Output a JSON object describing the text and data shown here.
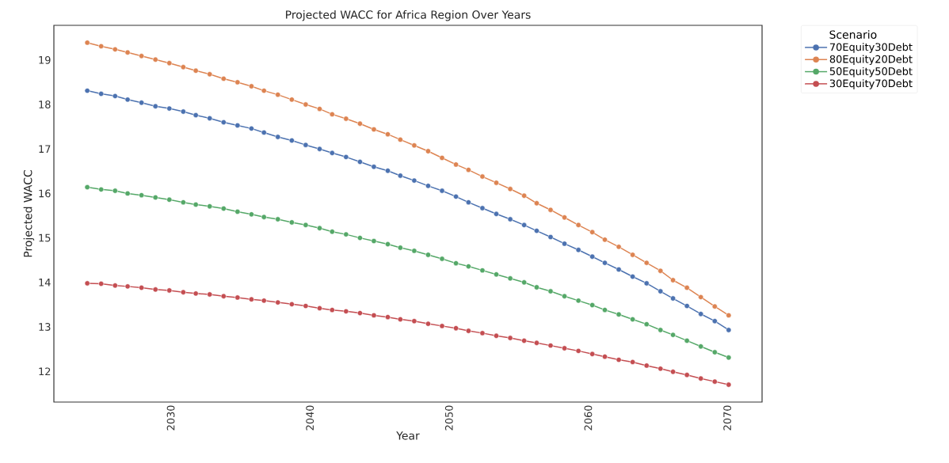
{
  "chart_data": {
    "type": "line",
    "title": "Projected WACC for Africa Region Over Years",
    "xlabel": "Year",
    "ylabel": "Projected WACC",
    "legend_title": "Scenario",
    "x": [
      2024.0,
      2025.0,
      2026.0,
      2026.9,
      2027.9,
      2028.9,
      2029.9,
      2030.9,
      2031.8,
      2032.8,
      2033.8,
      2034.8,
      2035.8,
      2036.7,
      2037.7,
      2038.7,
      2039.7,
      2040.7,
      2041.6,
      2042.6,
      2043.6,
      2044.6,
      2045.6,
      2046.5,
      2047.5,
      2048.5,
      2049.5,
      2050.5,
      2051.4,
      2052.4,
      2053.4,
      2054.4,
      2055.4,
      2056.3,
      2057.3,
      2058.3,
      2059.3,
      2060.3,
      2061.2,
      2062.2,
      2063.2,
      2064.2,
      2065.2,
      2066.1,
      2067.1,
      2068.1,
      2069.1,
      2070.1
    ],
    "series": [
      {
        "name": "70Equity30Debt",
        "color": "#4c72b0",
        "values": [
          18.31,
          18.24,
          18.19,
          18.11,
          18.04,
          17.96,
          17.91,
          17.84,
          17.76,
          17.69,
          17.6,
          17.53,
          17.46,
          17.37,
          17.27,
          17.19,
          17.09,
          17.0,
          16.91,
          16.82,
          16.71,
          16.6,
          16.51,
          16.4,
          16.29,
          16.17,
          16.06,
          15.93,
          15.8,
          15.67,
          15.54,
          15.42,
          15.29,
          15.16,
          15.02,
          14.87,
          14.73,
          14.58,
          14.44,
          14.29,
          14.13,
          13.98,
          13.8,
          13.64,
          13.47,
          13.29,
          13.13,
          12.93
        ]
      },
      {
        "name": "80Equity20Debt",
        "color": "#dd8452",
        "values": [
          19.39,
          19.31,
          19.24,
          19.17,
          19.09,
          19.01,
          18.93,
          18.84,
          18.76,
          18.68,
          18.58,
          18.5,
          18.41,
          18.31,
          18.22,
          18.11,
          18.0,
          17.9,
          17.78,
          17.68,
          17.57,
          17.44,
          17.33,
          17.21,
          17.08,
          16.95,
          16.8,
          16.65,
          16.53,
          16.38,
          16.24,
          16.1,
          15.95,
          15.78,
          15.63,
          15.46,
          15.29,
          15.13,
          14.96,
          14.8,
          14.62,
          14.44,
          14.26,
          14.05,
          13.88,
          13.67,
          13.46,
          13.26
        ]
      },
      {
        "name": "50Equity50Debt",
        "color": "#55a868",
        "values": [
          16.14,
          16.09,
          16.06,
          16.0,
          15.96,
          15.91,
          15.86,
          15.8,
          15.75,
          15.71,
          15.66,
          15.59,
          15.53,
          15.47,
          15.42,
          15.35,
          15.29,
          15.22,
          15.14,
          15.08,
          15.0,
          14.93,
          14.86,
          14.78,
          14.71,
          14.62,
          14.53,
          14.43,
          14.36,
          14.27,
          14.18,
          14.09,
          14.0,
          13.89,
          13.8,
          13.69,
          13.59,
          13.49,
          13.38,
          13.28,
          13.17,
          13.06,
          12.93,
          12.82,
          12.69,
          12.56,
          12.43,
          12.31
        ]
      },
      {
        "name": "30Equity70Debt",
        "color": "#c44e52",
        "values": [
          13.98,
          13.97,
          13.93,
          13.91,
          13.88,
          13.84,
          13.82,
          13.78,
          13.75,
          13.73,
          13.69,
          13.66,
          13.62,
          13.59,
          13.55,
          13.51,
          13.47,
          13.42,
          13.38,
          13.35,
          13.31,
          13.26,
          13.22,
          13.17,
          13.13,
          13.07,
          13.02,
          12.97,
          12.91,
          12.86,
          12.8,
          12.75,
          12.69,
          12.64,
          12.58,
          12.52,
          12.46,
          12.39,
          12.33,
          12.26,
          12.21,
          12.13,
          12.06,
          11.99,
          11.92,
          11.84,
          11.77,
          11.7
        ]
      }
    ],
    "xlim": [
      2021.6,
      2072.5
    ],
    "ylim": [
      11.31,
      19.78
    ],
    "xticks": [
      2030,
      2040,
      2050,
      2060,
      2070
    ],
    "yticks": [
      12,
      13,
      14,
      15,
      16,
      17,
      18,
      19
    ],
    "grid": false,
    "legend": "top right",
    "marker": "circle",
    "line_style": "solid"
  }
}
